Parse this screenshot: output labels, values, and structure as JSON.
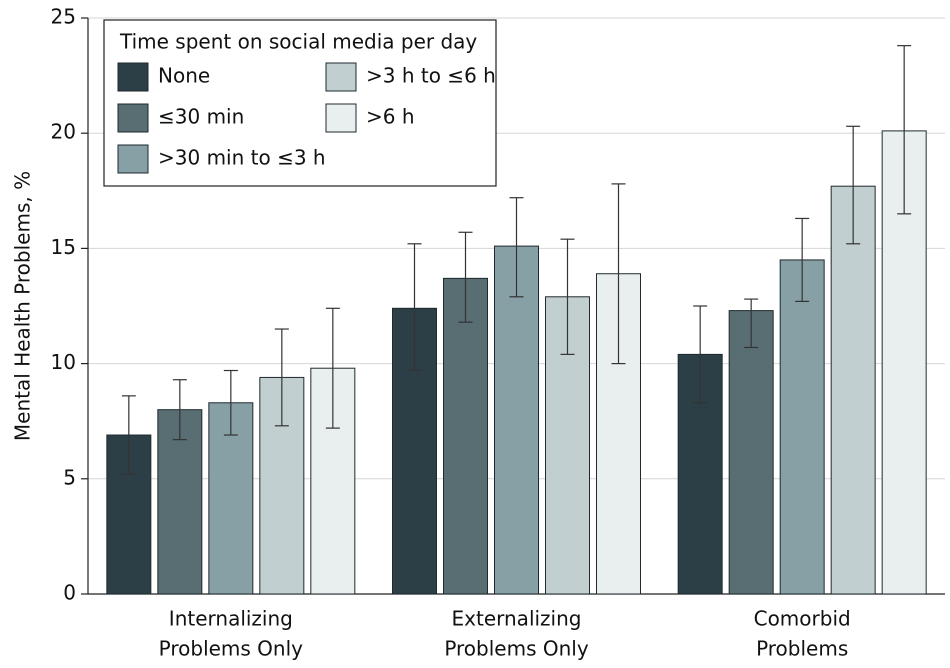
{
  "chart_data": {
    "type": "bar",
    "y_label": "Mental Health Problems, %",
    "legend_title": "Time spent on social media per day",
    "categories": [
      [
        "Internalizing",
        "Problems Only"
      ],
      [
        "Externalizing",
        "Problems Only"
      ],
      [
        "Comorbid",
        "Problems"
      ]
    ],
    "series": [
      {
        "name": "None",
        "color": "#2c3f46",
        "values": [
          6.9,
          12.4,
          10.4
        ],
        "ci_low": [
          5.2,
          9.7,
          8.3
        ],
        "ci_high": [
          8.6,
          15.2,
          12.5
        ]
      },
      {
        "name": "≤30 min",
        "color": "#586e73",
        "values": [
          8.0,
          13.7,
          12.3
        ],
        "ci_low": [
          6.7,
          11.8,
          10.7
        ],
        "ci_high": [
          9.3,
          15.7,
          12.8
        ]
      },
      {
        "name": ">30 min to ≤3 h",
        "color": "#87a0a5",
        "values": [
          8.3,
          15.1,
          14.5
        ],
        "ci_low": [
          6.9,
          12.9,
          12.7
        ],
        "ci_high": [
          9.7,
          17.2,
          16.3
        ]
      },
      {
        "name": ">3 h to ≤6 h",
        "color": "#c2cfd0",
        "values": [
          9.4,
          12.9,
          17.7
        ],
        "ci_low": [
          7.3,
          10.4,
          15.2
        ],
        "ci_high": [
          11.5,
          15.4,
          20.3
        ]
      },
      {
        "name": ">6 h",
        "color": "#e9efef",
        "values": [
          9.8,
          13.9,
          20.1
        ],
        "ci_low": [
          7.2,
          10.0,
          16.5
        ],
        "ci_high": [
          12.4,
          17.8,
          23.8
        ]
      }
    ],
    "ylim": [
      0,
      25
    ],
    "yticks": [
      0,
      5,
      10,
      15,
      20,
      25
    ],
    "grid": true
  }
}
